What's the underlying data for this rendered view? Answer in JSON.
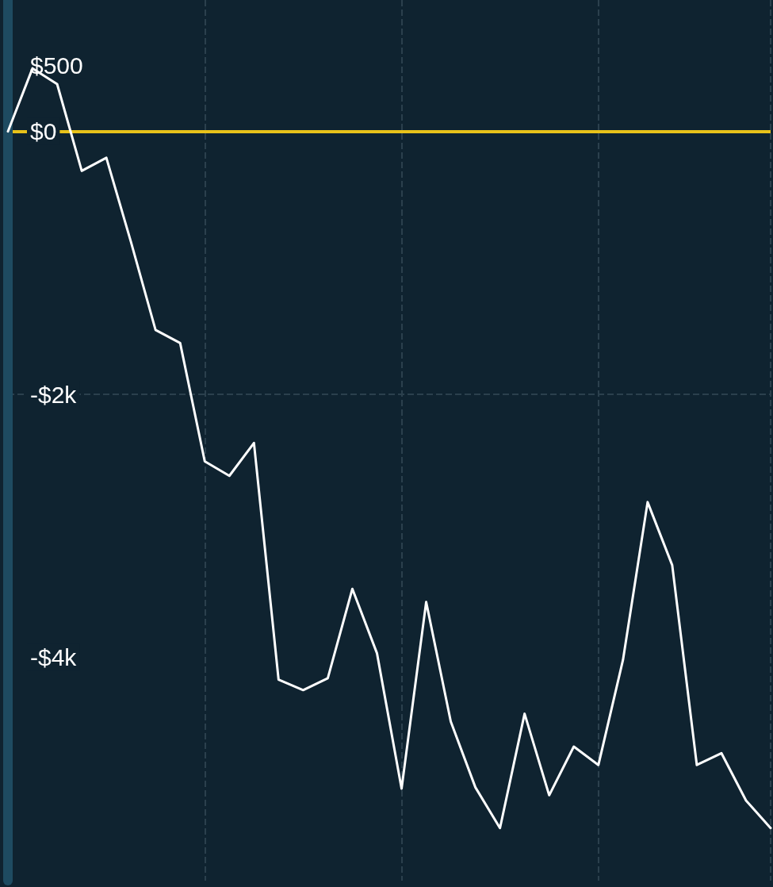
{
  "chart_data": {
    "type": "line",
    "categories": [
      null,
      null,
      null,
      null,
      null,
      null,
      null,
      null,
      null,
      null,
      null,
      null,
      null,
      null,
      null,
      null,
      null,
      null,
      null,
      null,
      null,
      null,
      null,
      null,
      null,
      null,
      null,
      null,
      null,
      null,
      null,
      null
    ],
    "series": [
      {
        "color": "#ffffff",
        "values": [
          0,
          480,
          360,
          -300,
          -200,
          -840,
          -1510,
          -1610,
          -2510,
          -2620,
          -2370,
          -4170,
          -4250,
          -4160,
          -3480,
          -3970,
          -5000,
          -3580,
          -4490,
          -4990,
          -5300,
          -4430,
          -5050,
          -4680,
          -4820,
          -4020,
          -2820,
          -3300,
          -4820,
          -4730,
          -5090,
          -5300
        ]
      }
    ],
    "ylim": [
      -5700,
      1000
    ],
    "yticks": [
      {
        "value": 500,
        "label": "$500"
      },
      {
        "value": 0,
        "label": "$0"
      },
      {
        "value": -2000,
        "label": "-$2k"
      },
      {
        "value": -4000,
        "label": "-$4k"
      }
    ],
    "ref_lines": [
      {
        "axis": "y",
        "value": 0,
        "color": "#e8c21a",
        "line_style": "solid"
      }
    ],
    "grid": true,
    "marker": "none",
    "line_style": "solid"
  }
}
